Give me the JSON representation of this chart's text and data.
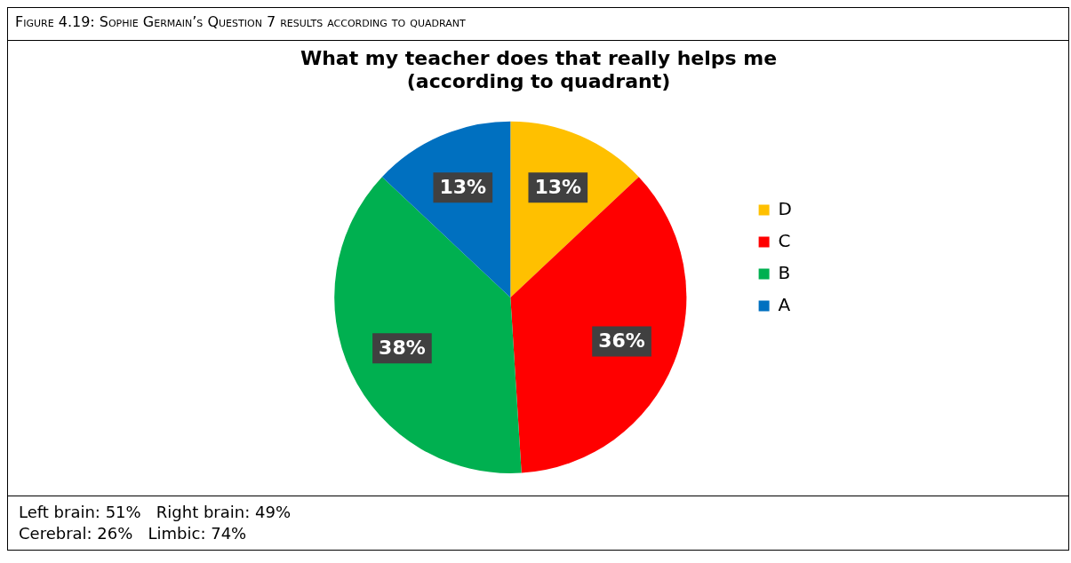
{
  "chart_data": {
    "type": "pie",
    "title": [
      "What my teacher does that really helps me",
      "(according to quadrant)"
    ],
    "categories": [
      "D",
      "C",
      "B",
      "A"
    ],
    "values": [
      13,
      36,
      38,
      13
    ],
    "colors": [
      "#ffc000",
      "#ff0000",
      "#00b050",
      "#0070c0"
    ],
    "value_labels": [
      "13%",
      "36%",
      "38%",
      "13%"
    ],
    "legend": "right",
    "annotations": [
      "Figure 4.19: Sophie Germain’s Question 7 results according to quadrant",
      "Left brain: 51%   Right brain: 49%",
      "Cerebral: 26%   Limbic: 74%"
    ]
  }
}
